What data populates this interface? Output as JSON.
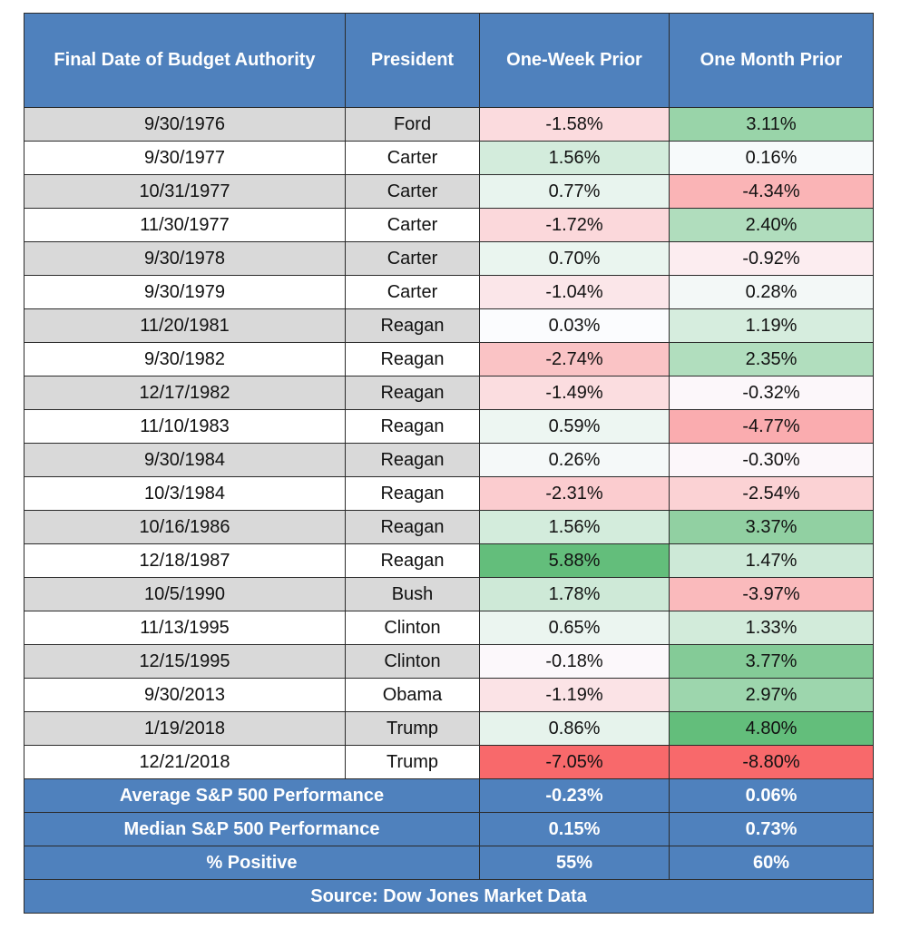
{
  "colors": {
    "header_bg": "#4f81bd",
    "stripe_gray": "#d9d9d9",
    "stripe_white": "#ffffff",
    "positive": "#63be7b",
    "neutral": "#fcfcff",
    "negative": "#f8696b"
  },
  "chart_data": {
    "type": "table",
    "columns": [
      "Final Date of Budget Authority",
      "President",
      "One-Week Prior",
      "One Month Prior"
    ],
    "rows": [
      [
        "9/30/1976",
        "Ford",
        "-1.58%",
        "3.11%"
      ],
      [
        "9/30/1977",
        "Carter",
        "1.56%",
        "0.16%"
      ],
      [
        "10/31/1977",
        "Carter",
        "0.77%",
        "-4.34%"
      ],
      [
        "11/30/1977",
        "Carter",
        "-1.72%",
        "2.40%"
      ],
      [
        "9/30/1978",
        "Carter",
        "0.70%",
        "-0.92%"
      ],
      [
        "9/30/1979",
        "Carter",
        "-1.04%",
        "0.28%"
      ],
      [
        "11/20/1981",
        "Reagan",
        "0.03%",
        "1.19%"
      ],
      [
        "9/30/1982",
        "Reagan",
        "-2.74%",
        "2.35%"
      ],
      [
        "12/17/1982",
        "Reagan",
        "-1.49%",
        "-0.32%"
      ],
      [
        "11/10/1983",
        "Reagan",
        "0.59%",
        "-4.77%"
      ],
      [
        "9/30/1984",
        "Reagan",
        "0.26%",
        "-0.30%"
      ],
      [
        "10/3/1984",
        "Reagan",
        "-2.31%",
        "-2.54%"
      ],
      [
        "10/16/1986",
        "Reagan",
        "1.56%",
        "3.37%"
      ],
      [
        "12/18/1987",
        "Reagan",
        "5.88%",
        "1.47%"
      ],
      [
        "10/5/1990",
        "Bush",
        "1.78%",
        "-3.97%"
      ],
      [
        "11/13/1995",
        "Clinton",
        "0.65%",
        "1.33%"
      ],
      [
        "12/15/1995",
        "Clinton",
        "-0.18%",
        "3.77%"
      ],
      [
        "9/30/2013",
        "Obama",
        "-1.19%",
        "2.97%"
      ],
      [
        "1/19/2018",
        "Trump",
        "0.86%",
        "4.80%"
      ],
      [
        "12/21/2018",
        "Trump",
        "-7.05%",
        "-8.80%"
      ]
    ],
    "week_values": [
      -1.58,
      1.56,
      0.77,
      -1.72,
      0.7,
      -1.04,
      0.03,
      -2.74,
      -1.49,
      0.59,
      0.26,
      -2.31,
      1.56,
      5.88,
      1.78,
      0.65,
      -0.18,
      -1.19,
      0.86,
      -7.05
    ],
    "month_values": [
      3.11,
      0.16,
      -4.34,
      2.4,
      -0.92,
      0.28,
      1.19,
      2.35,
      -0.32,
      -4.77,
      -0.3,
      -2.54,
      3.37,
      1.47,
      -3.97,
      1.33,
      3.77,
      2.97,
      4.8,
      -8.8
    ],
    "summary": [
      {
        "label": "Average S&P 500 Performance",
        "week": "-0.23%",
        "month": "0.06%"
      },
      {
        "label": "Median S&P 500 Performance",
        "week": "0.15%",
        "month": "0.73%"
      },
      {
        "label": "% Positive",
        "week": "55%",
        "month": "60%"
      }
    ],
    "source": "Source: Dow Jones Market Data"
  }
}
